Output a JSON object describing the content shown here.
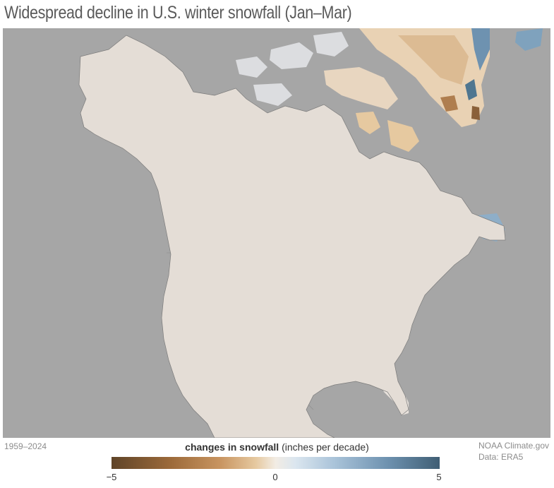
{
  "title": "Widespread decline in U.S. winter snowfall (Jan–Mar)",
  "period": "1959–2024",
  "credit": {
    "line1": "NOAA Climate.gov",
    "line2": "Data: ERA5"
  },
  "legend": {
    "title_bold": "changes in snowfall",
    "title_units": " (inches per decade)",
    "min_label": "−5",
    "mid_label": "0",
    "max_label": "5",
    "min": -5,
    "max": 5
  },
  "colors": {
    "decline_strong": "#5f4428",
    "decline": "#c89460",
    "neutral": "#f2ece4",
    "increase": "#a9c3d9",
    "increase_strong": "#3f5e74",
    "ocean": "#a6a6a6"
  }
}
